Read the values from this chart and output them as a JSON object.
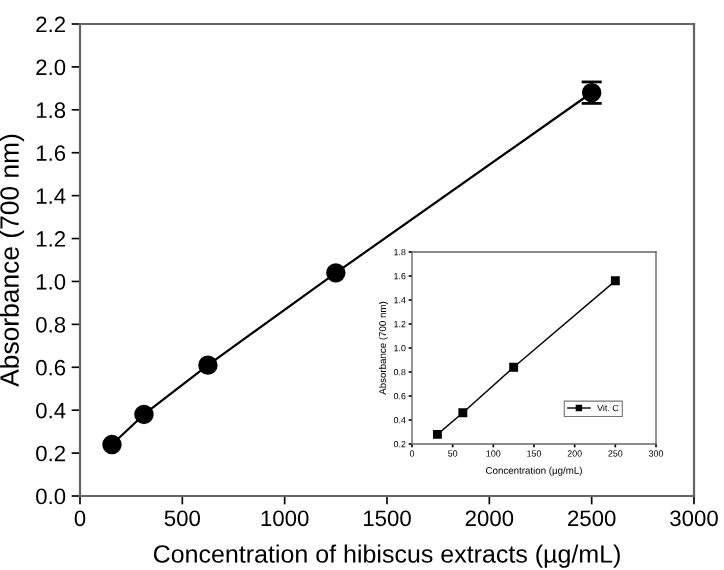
{
  "chart_data": [
    {
      "type": "line",
      "xlabel": "Concentration of hibiscus extracts (µg/mL)",
      "ylabel": "Absorbance (700 nm)",
      "x": [
        156.25,
        312.5,
        625,
        1250,
        2500
      ],
      "series": [
        {
          "color": "#000000",
          "values": [
            0.24,
            0.38,
            0.61,
            1.04,
            1.88
          ],
          "errors": [
            null,
            null,
            null,
            null,
            0.05
          ]
        }
      ],
      "marker": "circle",
      "xlim": [
        0,
        3000
      ],
      "xticks": [
        0,
        500,
        1000,
        1500,
        2000,
        2500,
        3000
      ],
      "ylim": [
        0,
        2.2
      ],
      "yticks": [
        {
          "value": 0,
          "label": "0.0"
        },
        0.2,
        0.4,
        0.6,
        0.8,
        {
          "value": 1,
          "label": "1.0"
        },
        1.2,
        1.4,
        1.6,
        1.8,
        {
          "value": 2,
          "label": "2.0"
        },
        2.2
      ],
      "grid": false,
      "legend": false
    },
    {
      "type": "line",
      "xlabel": "Concentration (µg/mL)",
      "ylabel": "Absorbance (700 nm)",
      "x": [
        31.25,
        62.5,
        125,
        250
      ],
      "series": [
        {
          "name": "Vit. C",
          "color": "#000000",
          "values": [
            0.28,
            0.46,
            0.84,
            1.56
          ],
          "errors": [
            null,
            null,
            null,
            0.02
          ]
        }
      ],
      "marker": "square",
      "xlim": [
        0,
        300
      ],
      "xticks": [
        0,
        50,
        100,
        150,
        200,
        250,
        300
      ],
      "ylim": [
        0.2,
        1.8
      ],
      "yticks": [
        0.2,
        0.4,
        0.6,
        0.8,
        {
          "value": 1,
          "label": "1.0"
        },
        1.2,
        1.4,
        1.6,
        1.8
      ],
      "grid": false,
      "legend": "bottom right"
    }
  ]
}
